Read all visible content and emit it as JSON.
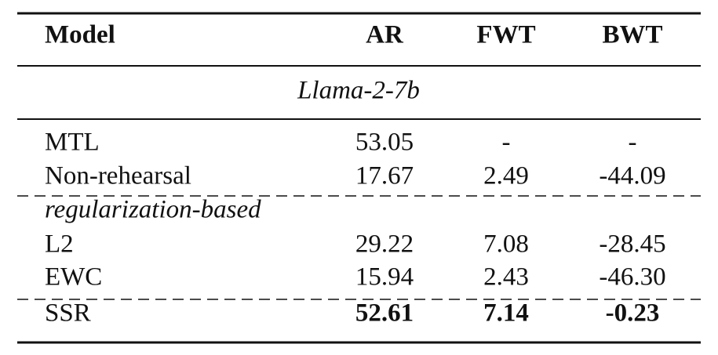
{
  "table": {
    "header": [
      "Model",
      "AR",
      "FWT",
      "BWT"
    ],
    "section": "Llama-2-7b",
    "rows": [
      [
        "MTL",
        "53.05",
        "-",
        "-"
      ],
      [
        "Non-rehearsal",
        "17.67",
        "2.49",
        "-44.09"
      ]
    ],
    "group": "regularization-based",
    "group_rows": [
      [
        "L2",
        "29.22",
        "7.08",
        "-28.45"
      ],
      [
        "EWC",
        "15.94",
        "2.43",
        "-46.30"
      ]
    ],
    "final_row": [
      "SSR",
      "52.61",
      "7.14",
      "-0.23"
    ]
  }
}
